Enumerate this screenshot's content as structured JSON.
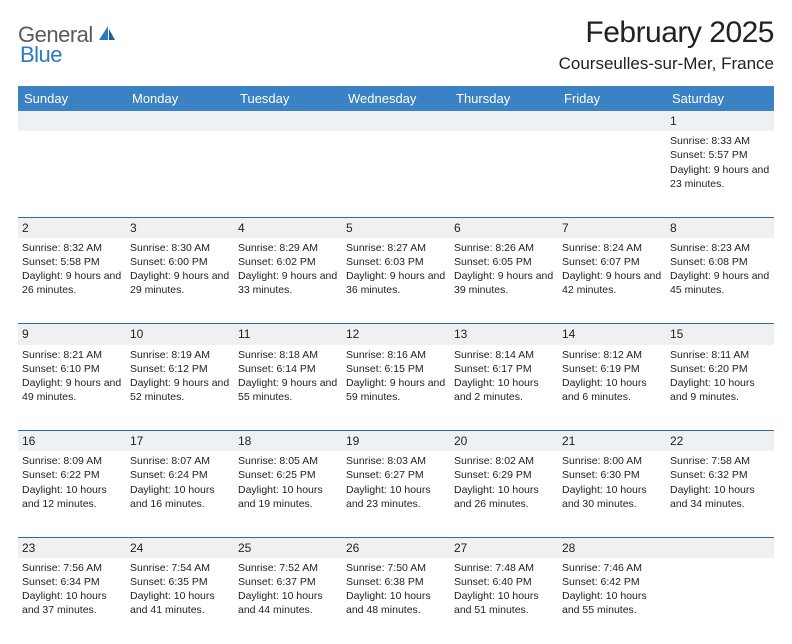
{
  "logo": {
    "text1": "General",
    "text2": "Blue"
  },
  "title": "February 2025",
  "location": "Courseulles-sur-Mer, France",
  "colors": {
    "header_bg": "#3a82c4",
    "header_text": "#ffffff",
    "daynum_bg": "#eef0f2",
    "row_border": "#2b6aa8",
    "logo_gray": "#5a5a5a",
    "logo_blue": "#2b7bbf",
    "text": "#222222",
    "page_bg": "#ffffff"
  },
  "weekdays": [
    "Sunday",
    "Monday",
    "Tuesday",
    "Wednesday",
    "Thursday",
    "Friday",
    "Saturday"
  ],
  "weeks": [
    {
      "nums": [
        "",
        "",
        "",
        "",
        "",
        "",
        "1"
      ],
      "details": [
        "",
        "",
        "",
        "",
        "",
        "",
        "Sunrise: 8:33 AM\nSunset: 5:57 PM\nDaylight: 9 hours and 23 minutes."
      ]
    },
    {
      "nums": [
        "2",
        "3",
        "4",
        "5",
        "6",
        "7",
        "8"
      ],
      "details": [
        "Sunrise: 8:32 AM\nSunset: 5:58 PM\nDaylight: 9 hours and 26 minutes.",
        "Sunrise: 8:30 AM\nSunset: 6:00 PM\nDaylight: 9 hours and 29 minutes.",
        "Sunrise: 8:29 AM\nSunset: 6:02 PM\nDaylight: 9 hours and 33 minutes.",
        "Sunrise: 8:27 AM\nSunset: 6:03 PM\nDaylight: 9 hours and 36 minutes.",
        "Sunrise: 8:26 AM\nSunset: 6:05 PM\nDaylight: 9 hours and 39 minutes.",
        "Sunrise: 8:24 AM\nSunset: 6:07 PM\nDaylight: 9 hours and 42 minutes.",
        "Sunrise: 8:23 AM\nSunset: 6:08 PM\nDaylight: 9 hours and 45 minutes."
      ]
    },
    {
      "nums": [
        "9",
        "10",
        "11",
        "12",
        "13",
        "14",
        "15"
      ],
      "details": [
        "Sunrise: 8:21 AM\nSunset: 6:10 PM\nDaylight: 9 hours and 49 minutes.",
        "Sunrise: 8:19 AM\nSunset: 6:12 PM\nDaylight: 9 hours and 52 minutes.",
        "Sunrise: 8:18 AM\nSunset: 6:14 PM\nDaylight: 9 hours and 55 minutes.",
        "Sunrise: 8:16 AM\nSunset: 6:15 PM\nDaylight: 9 hours and 59 minutes.",
        "Sunrise: 8:14 AM\nSunset: 6:17 PM\nDaylight: 10 hours and 2 minutes.",
        "Sunrise: 8:12 AM\nSunset: 6:19 PM\nDaylight: 10 hours and 6 minutes.",
        "Sunrise: 8:11 AM\nSunset: 6:20 PM\nDaylight: 10 hours and 9 minutes."
      ]
    },
    {
      "nums": [
        "16",
        "17",
        "18",
        "19",
        "20",
        "21",
        "22"
      ],
      "details": [
        "Sunrise: 8:09 AM\nSunset: 6:22 PM\nDaylight: 10 hours and 12 minutes.",
        "Sunrise: 8:07 AM\nSunset: 6:24 PM\nDaylight: 10 hours and 16 minutes.",
        "Sunrise: 8:05 AM\nSunset: 6:25 PM\nDaylight: 10 hours and 19 minutes.",
        "Sunrise: 8:03 AM\nSunset: 6:27 PM\nDaylight: 10 hours and 23 minutes.",
        "Sunrise: 8:02 AM\nSunset: 6:29 PM\nDaylight: 10 hours and 26 minutes.",
        "Sunrise: 8:00 AM\nSunset: 6:30 PM\nDaylight: 10 hours and 30 minutes.",
        "Sunrise: 7:58 AM\nSunset: 6:32 PM\nDaylight: 10 hours and 34 minutes."
      ]
    },
    {
      "nums": [
        "23",
        "24",
        "25",
        "26",
        "27",
        "28",
        ""
      ],
      "details": [
        "Sunrise: 7:56 AM\nSunset: 6:34 PM\nDaylight: 10 hours and 37 minutes.",
        "Sunrise: 7:54 AM\nSunset: 6:35 PM\nDaylight: 10 hours and 41 minutes.",
        "Sunrise: 7:52 AM\nSunset: 6:37 PM\nDaylight: 10 hours and 44 minutes.",
        "Sunrise: 7:50 AM\nSunset: 6:38 PM\nDaylight: 10 hours and 48 minutes.",
        "Sunrise: 7:48 AM\nSunset: 6:40 PM\nDaylight: 10 hours and 51 minutes.",
        "Sunrise: 7:46 AM\nSunset: 6:42 PM\nDaylight: 10 hours and 55 minutes.",
        ""
      ]
    }
  ]
}
